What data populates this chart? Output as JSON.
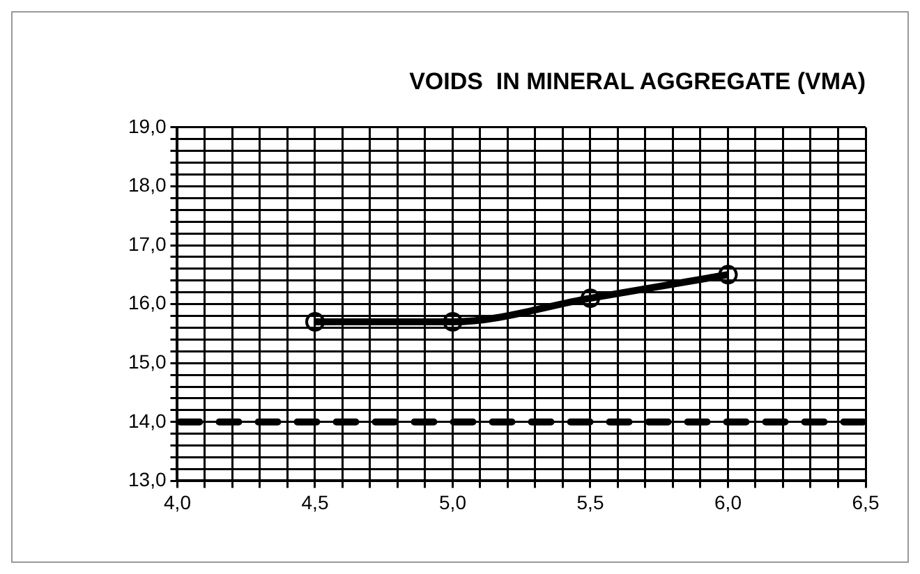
{
  "chart_data": {
    "type": "line",
    "title": "VOIDS  IN MINERAL AGGREGATE (VMA)",
    "x": [
      4.5,
      5.0,
      5.5,
      6.0
    ],
    "series": [
      {
        "color": "#000000",
        "values": [
          15.7,
          15.7,
          16.1,
          16.5
        ]
      }
    ],
    "xlim": [
      4.0,
      6.5
    ],
    "xticks": [
      {
        "value": 4.0,
        "label": "4,0"
      },
      {
        "value": 4.1,
        "label": null
      },
      {
        "value": 4.2,
        "label": null
      },
      {
        "value": 4.3,
        "label": null
      },
      {
        "value": 4.4,
        "label": null
      },
      {
        "value": 4.5,
        "label": "4,5"
      },
      {
        "value": 4.6,
        "label": null
      },
      {
        "value": 4.7,
        "label": null
      },
      {
        "value": 4.8,
        "label": null
      },
      {
        "value": 4.9,
        "label": null
      },
      {
        "value": 5.0,
        "label": "5,0"
      },
      {
        "value": 5.1,
        "label": null
      },
      {
        "value": 5.2,
        "label": null
      },
      {
        "value": 5.3,
        "label": null
      },
      {
        "value": 5.4,
        "label": null
      },
      {
        "value": 5.5,
        "label": "5,5"
      },
      {
        "value": 5.6,
        "label": null
      },
      {
        "value": 5.7,
        "label": null
      },
      {
        "value": 5.8,
        "label": null
      },
      {
        "value": 5.9,
        "label": null
      },
      {
        "value": 6.0,
        "label": "6,0"
      },
      {
        "value": 6.1,
        "label": null
      },
      {
        "value": 6.2,
        "label": null
      },
      {
        "value": 6.3,
        "label": null
      },
      {
        "value": 6.4,
        "label": null
      },
      {
        "value": 6.5,
        "label": "6,5"
      }
    ],
    "ylim": [
      13.0,
      19.0
    ],
    "yticks": [
      {
        "value": 13.0,
        "label": "13,0"
      },
      {
        "value": 13.2,
        "label": null
      },
      {
        "value": 13.4,
        "label": null
      },
      {
        "value": 13.6,
        "label": null
      },
      {
        "value": 13.8,
        "label": null
      },
      {
        "value": 14.0,
        "label": "14,0"
      },
      {
        "value": 14.2,
        "label": null
      },
      {
        "value": 14.4,
        "label": null
      },
      {
        "value": 14.6,
        "label": null
      },
      {
        "value": 14.8,
        "label": null
      },
      {
        "value": 15.0,
        "label": "15,0"
      },
      {
        "value": 15.2,
        "label": null
      },
      {
        "value": 15.4,
        "label": null
      },
      {
        "value": 15.6,
        "label": null
      },
      {
        "value": 15.8,
        "label": null
      },
      {
        "value": 16.0,
        "label": "16,0"
      },
      {
        "value": 16.2,
        "label": null
      },
      {
        "value": 16.4,
        "label": null
      },
      {
        "value": 16.6,
        "label": null
      },
      {
        "value": 16.8,
        "label": null
      },
      {
        "value": 17.0,
        "label": "17,0"
      },
      {
        "value": 17.2,
        "label": null
      },
      {
        "value": 17.4,
        "label": null
      },
      {
        "value": 17.6,
        "label": null
      },
      {
        "value": 17.8,
        "label": null
      },
      {
        "value": 18.0,
        "label": "18,0"
      },
      {
        "value": 18.2,
        "label": null
      },
      {
        "value": 18.4,
        "label": null
      },
      {
        "value": 18.6,
        "label": null
      },
      {
        "value": 18.8,
        "label": null
      },
      {
        "value": 19.0,
        "label": "19,0"
      }
    ],
    "ref_lines": [
      {
        "axis": "y",
        "value": 14.0,
        "color": "#000000",
        "line_style": "dashed"
      }
    ],
    "grid": true,
    "legend": false,
    "marker": "circle",
    "line_style": "solid"
  }
}
